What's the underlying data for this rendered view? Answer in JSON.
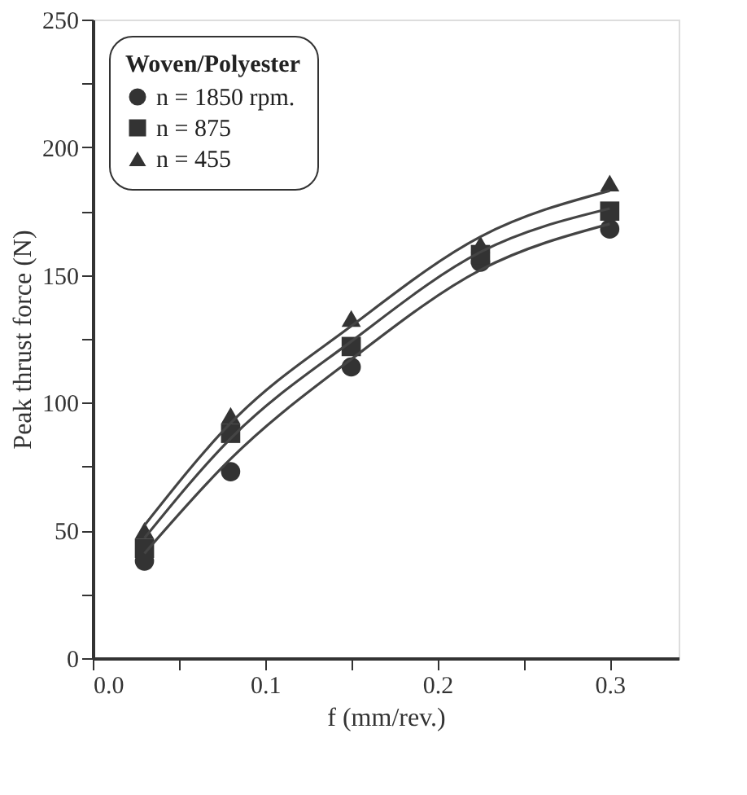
{
  "chart_data": {
    "type": "scatter",
    "xlabel": "f (mm/rev.)",
    "ylabel": "Peak thrust force (N)",
    "legend_title": "Woven/Polyester",
    "legend": "top left",
    "grid": false,
    "xlim": [
      0,
      0.34
    ],
    "ylim": [
      0,
      250
    ],
    "xticks": [
      {
        "value": 0,
        "label": "0.0"
      },
      {
        "value": 0.05,
        "label": null
      },
      {
        "value": 0.1,
        "label": "0.1"
      },
      {
        "value": 0.15,
        "label": null
      },
      {
        "value": 0.2,
        "label": "0.2"
      },
      {
        "value": 0.25,
        "label": null
      },
      {
        "value": 0.3,
        "label": "0.3"
      }
    ],
    "yticks": [
      0,
      {
        "value": 25,
        "label": null
      },
      50,
      {
        "value": 75,
        "label": null
      },
      100,
      {
        "value": 125,
        "label": null
      },
      150,
      {
        "value": 175,
        "label": null
      },
      200,
      {
        "value": 225,
        "label": null
      },
      250
    ],
    "x": [
      0.03,
      0.08,
      0.15,
      0.225,
      0.3
    ],
    "series": [
      {
        "name": "n = 1850 rpm.",
        "type": "scatter",
        "marker": "circle",
        "color": "#333333",
        "values": [
          38,
          73,
          114,
          155,
          168
        ]
      },
      {
        "name": "n = 875",
        "type": "scatter",
        "marker": "square",
        "color": "#333333",
        "values": [
          43,
          88,
          122,
          158,
          175
        ]
      },
      {
        "name": "n = 455",
        "type": "scatter",
        "marker": "triangle",
        "color": "#333333",
        "values": [
          50,
          95,
          133,
          162,
          186
        ]
      },
      {
        "type": "line",
        "marker": "none",
        "line_style": "solid",
        "color": "#444444",
        "x": [
          0.03,
          0.08,
          0.15,
          0.225,
          0.3
        ],
        "values": [
          41,
          78,
          117,
          152,
          170
        ]
      },
      {
        "type": "line",
        "marker": "none",
        "line_style": "solid",
        "color": "#444444",
        "x": [
          0.03,
          0.08,
          0.15,
          0.225,
          0.3
        ],
        "values": [
          47,
          86,
          124,
          159,
          176
        ]
      },
      {
        "type": "line",
        "marker": "none",
        "line_style": "solid",
        "color": "#444444",
        "x": [
          0.03,
          0.08,
          0.15,
          0.225,
          0.3
        ],
        "values": [
          52,
          92,
          130,
          165,
          183
        ]
      }
    ]
  }
}
